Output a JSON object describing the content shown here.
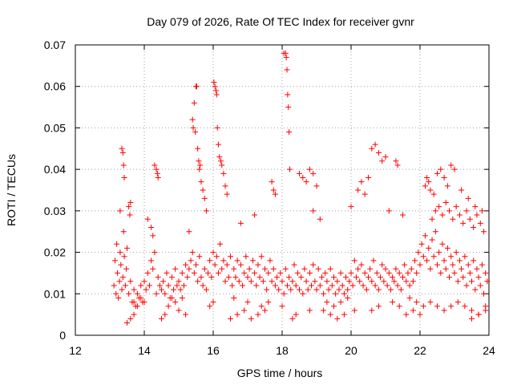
{
  "chart_data": {
    "type": "scatter",
    "title": "Day 079 of 2026, Rate Of TEC Index for receiver gvnr",
    "xlabel": "GPS time / hours",
    "ylabel": "ROTI / TECUs",
    "xlim": [
      12,
      24
    ],
    "ylim": [
      0,
      0.07
    ],
    "xticks": [
      "12",
      "14",
      "16",
      "18",
      "20",
      "22",
      "24"
    ],
    "yticks": [
      "0",
      "0.01",
      "0.02",
      "0.03",
      "0.04",
      "0.05",
      "0.06",
      "0.07"
    ],
    "grid": true,
    "marker": "plus",
    "series": [
      {
        "name": "ROTI",
        "color": "#ff0000",
        "x": [
          13.12,
          13.15,
          13.18,
          13.2,
          13.22,
          13.25,
          13.28,
          13.3,
          13.32,
          13.35,
          13.38,
          13.4,
          13.42,
          13.45,
          13.48,
          13.5,
          13.55,
          13.6,
          13.65,
          13.7,
          13.75,
          13.8,
          13.85,
          13.9,
          13.95,
          14.0,
          14.05,
          14.1,
          14.15,
          14.2,
          14.25,
          14.3,
          14.35,
          14.4,
          14.45,
          14.5,
          14.55,
          14.6,
          14.65,
          14.7,
          14.75,
          14.8,
          14.85,
          14.9,
          14.95,
          15.0,
          15.05,
          15.1,
          15.15,
          15.2,
          15.25,
          15.3,
          15.35,
          15.4,
          15.45,
          15.5,
          15.55,
          15.6,
          15.65,
          15.7,
          15.75,
          15.8,
          15.85,
          15.9,
          15.95,
          16.0,
          16.05,
          16.1,
          16.15,
          16.2,
          16.25,
          16.3,
          16.35,
          16.4,
          16.45,
          16.5,
          16.55,
          16.6,
          16.65,
          16.7,
          16.75,
          16.8,
          16.85,
          16.9,
          16.95,
          17.0,
          17.05,
          17.1,
          17.15,
          17.2,
          17.25,
          17.3,
          17.35,
          17.4,
          17.45,
          17.5,
          17.55,
          17.6,
          17.65,
          17.7,
          17.75,
          17.8,
          17.85,
          17.9,
          17.95,
          18.0,
          18.05,
          18.1,
          18.15,
          18.2,
          18.25,
          18.3,
          18.35,
          18.4,
          18.45,
          18.5,
          18.55,
          18.6,
          18.65,
          18.7,
          18.75,
          18.8,
          18.85,
          18.9,
          18.95,
          19.0,
          19.05,
          19.1,
          19.15,
          19.2,
          19.25,
          19.3,
          19.35,
          19.4,
          19.45,
          19.5,
          19.55,
          19.6,
          19.65,
          19.7,
          19.75,
          19.8,
          19.85,
          19.9,
          19.95,
          20.0,
          20.05,
          20.1,
          20.15,
          20.2,
          20.25,
          20.3,
          20.35,
          20.4,
          20.45,
          20.5,
          20.55,
          20.6,
          20.65,
          20.7,
          20.75,
          20.8,
          20.85,
          20.9,
          20.95,
          21.0,
          21.05,
          21.1,
          21.15,
          21.2,
          21.25,
          21.3,
          21.35,
          21.4,
          21.45,
          21.5,
          21.55,
          21.6,
          21.65,
          21.7,
          21.75,
          21.8,
          21.85,
          21.9,
          21.95,
          22.0,
          22.05,
          22.1,
          22.15,
          22.2,
          22.25,
          22.3,
          22.35,
          22.4,
          22.45,
          22.5,
          22.55,
          22.6,
          22.65,
          22.7,
          22.75,
          22.8,
          22.85,
          22.9,
          22.95,
          23.0,
          23.05,
          23.1,
          23.15,
          23.2,
          23.25,
          23.3,
          23.35,
          23.4,
          23.45,
          23.5,
          23.55,
          23.6,
          23.65,
          23.7,
          23.75,
          23.8,
          23.85,
          23.9,
          23.95,
          13.35,
          13.38,
          13.4,
          13.42,
          13.3,
          13.55,
          13.58,
          13.6,
          14.3,
          14.35,
          14.38,
          14.4,
          14.25,
          15.4,
          15.42,
          15.45,
          15.48,
          15.5,
          15.52,
          15.55,
          15.58,
          15.6,
          15.62,
          15.65,
          15.7,
          15.75,
          15.8,
          16.02,
          16.05,
          16.08,
          16.1,
          16.12,
          16.15,
          16.18,
          16.22,
          16.25,
          16.3,
          16.35,
          16.4,
          17.7,
          17.75,
          17.8,
          18.05,
          18.1,
          18.12,
          18.14,
          18.16,
          18.18,
          18.2,
          18.22,
          18.5,
          18.6,
          18.7,
          18.8,
          18.9,
          19.0,
          20.2,
          20.3,
          20.4,
          20.5,
          20.6,
          20.7,
          20.8,
          20.9,
          21.0,
          21.3,
          21.35,
          22.15,
          22.2,
          22.25,
          22.3,
          22.4,
          22.5,
          22.6,
          22.7,
          22.8,
          22.9,
          23.0,
          23.2,
          23.4,
          23.6,
          23.8,
          13.5,
          13.6,
          13.7,
          14.5,
          14.6,
          15.0,
          15.2,
          16.5,
          16.7,
          16.9,
          17.1,
          17.3,
          17.5,
          18.3,
          18.4,
          19.2,
          19.4,
          19.6,
          19.8,
          20.1,
          21.6,
          21.8,
          22.0,
          23.5,
          23.7,
          23.9,
          14.1,
          14.2,
          15.3,
          16.8,
          17.2,
          18.9,
          19.1,
          20.0,
          21.1,
          21.5,
          22.35,
          22.45,
          22.55,
          22.65,
          22.75,
          22.85,
          22.95,
          23.05,
          23.15,
          23.25,
          23.35,
          23.45,
          23.55,
          23.65,
          23.75,
          23.85,
          13.7,
          13.8,
          13.9,
          14.0,
          14.7,
          14.8,
          14.9,
          15.1,
          15.9,
          16.0,
          16.6,
          17.0,
          17.4,
          17.6,
          18.0,
          18.8,
          19.3,
          19.5,
          19.7,
          19.9,
          20.6,
          20.8,
          21.2,
          21.4,
          21.7,
          21.9,
          22.1,
          22.3,
          22.5,
          22.7,
          22.9,
          23.1,
          23.3,
          23.5,
          23.7,
          23.9
        ],
        "y": [
          0.012,
          0.018,
          0.01,
          0.022,
          0.015,
          0.009,
          0.013,
          0.02,
          0.017,
          0.011,
          0.014,
          0.025,
          0.019,
          0.012,
          0.016,
          0.021,
          0.01,
          0.013,
          0.008,
          0.011,
          0.007,
          0.01,
          0.009,
          0.012,
          0.008,
          0.013,
          0.011,
          0.015,
          0.012,
          0.018,
          0.016,
          0.02,
          0.01,
          0.014,
          0.012,
          0.011,
          0.013,
          0.01,
          0.015,
          0.012,
          0.009,
          0.014,
          0.011,
          0.016,
          0.012,
          0.013,
          0.011,
          0.015,
          0.012,
          0.017,
          0.014,
          0.016,
          0.018,
          0.02,
          0.015,
          0.017,
          0.013,
          0.019,
          0.014,
          0.012,
          0.016,
          0.011,
          0.015,
          0.018,
          0.014,
          0.02,
          0.017,
          0.019,
          0.015,
          0.022,
          0.016,
          0.018,
          0.013,
          0.017,
          0.014,
          0.019,
          0.012,
          0.016,
          0.014,
          0.018,
          0.013,
          0.017,
          0.012,
          0.015,
          0.019,
          0.014,
          0.016,
          0.013,
          0.018,
          0.015,
          0.012,
          0.017,
          0.014,
          0.019,
          0.013,
          0.016,
          0.011,
          0.015,
          0.018,
          0.013,
          0.016,
          0.012,
          0.014,
          0.011,
          0.015,
          0.013,
          0.01,
          0.016,
          0.012,
          0.014,
          0.011,
          0.013,
          0.017,
          0.012,
          0.015,
          0.011,
          0.014,
          0.01,
          0.016,
          0.013,
          0.011,
          0.015,
          0.012,
          0.017,
          0.013,
          0.011,
          0.016,
          0.012,
          0.014,
          0.01,
          0.015,
          0.013,
          0.011,
          0.016,
          0.012,
          0.014,
          0.01,
          0.013,
          0.011,
          0.015,
          0.012,
          0.01,
          0.014,
          0.011,
          0.013,
          0.015,
          0.012,
          0.018,
          0.014,
          0.016,
          0.013,
          0.017,
          0.012,
          0.015,
          0.011,
          0.014,
          0.016,
          0.013,
          0.018,
          0.012,
          0.015,
          0.011,
          0.014,
          0.017,
          0.013,
          0.016,
          0.012,
          0.015,
          0.011,
          0.014,
          0.013,
          0.016,
          0.012,
          0.015,
          0.011,
          0.014,
          0.017,
          0.013,
          0.015,
          0.012,
          0.016,
          0.013,
          0.018,
          0.015,
          0.02,
          0.017,
          0.022,
          0.019,
          0.024,
          0.018,
          0.021,
          0.016,
          0.023,
          0.019,
          0.025,
          0.017,
          0.02,
          0.015,
          0.022,
          0.018,
          0.016,
          0.021,
          0.014,
          0.019,
          0.017,
          0.015,
          0.02,
          0.013,
          0.018,
          0.016,
          0.014,
          0.019,
          0.012,
          0.017,
          0.015,
          0.013,
          0.018,
          0.011,
          0.016,
          0.014,
          0.012,
          0.017,
          0.01,
          0.015,
          0.013,
          0.045,
          0.044,
          0.041,
          0.038,
          0.03,
          0.031,
          0.029,
          0.032,
          0.041,
          0.04,
          0.039,
          0.038,
          0.024,
          0.052,
          0.05,
          0.056,
          0.049,
          0.06,
          0.06,
          0.045,
          0.042,
          0.04,
          0.041,
          0.037,
          0.035,
          0.033,
          0.03,
          0.061,
          0.06,
          0.059,
          0.058,
          0.05,
          0.046,
          0.043,
          0.042,
          0.041,
          0.039,
          0.036,
          0.034,
          0.037,
          0.035,
          0.034,
          0.068,
          0.068,
          0.067,
          0.064,
          0.058,
          0.055,
          0.049,
          0.04,
          0.039,
          0.038,
          0.037,
          0.04,
          0.039,
          0.036,
          0.035,
          0.037,
          0.034,
          0.038,
          0.045,
          0.046,
          0.044,
          0.042,
          0.043,
          0.042,
          0.041,
          0.036,
          0.038,
          0.037,
          0.035,
          0.034,
          0.039,
          0.04,
          0.038,
          0.036,
          0.041,
          0.04,
          0.035,
          0.033,
          0.031,
          0.03,
          0.003,
          0.004,
          0.005,
          0.004,
          0.005,
          0.006,
          0.005,
          0.004,
          0.005,
          0.006,
          0.004,
          0.005,
          0.006,
          0.004,
          0.005,
          0.006,
          0.005,
          0.004,
          0.005,
          0.006,
          0.005,
          0.006,
          0.005,
          0.004,
          0.005,
          0.007,
          0.028,
          0.026,
          0.025,
          0.027,
          0.029,
          0.03,
          0.028,
          0.031,
          0.03,
          0.029,
          0.028,
          0.03,
          0.031,
          0.029,
          0.032,
          0.03,
          0.028,
          0.031,
          0.029,
          0.027,
          0.03,
          0.028,
          0.026,
          0.029,
          0.027,
          0.025,
          0.008,
          0.007,
          0.009,
          0.008,
          0.007,
          0.009,
          0.008,
          0.009,
          0.007,
          0.008,
          0.009,
          0.008,
          0.007,
          0.008,
          0.007,
          0.006,
          0.008,
          0.007,
          0.008,
          0.009,
          0.006,
          0.007,
          0.008,
          0.007,
          0.009,
          0.008,
          0.007,
          0.008,
          0.007,
          0.006,
          0.007,
          0.008,
          0.007,
          0.006,
          0.005,
          0.006
        ]
      }
    ]
  }
}
